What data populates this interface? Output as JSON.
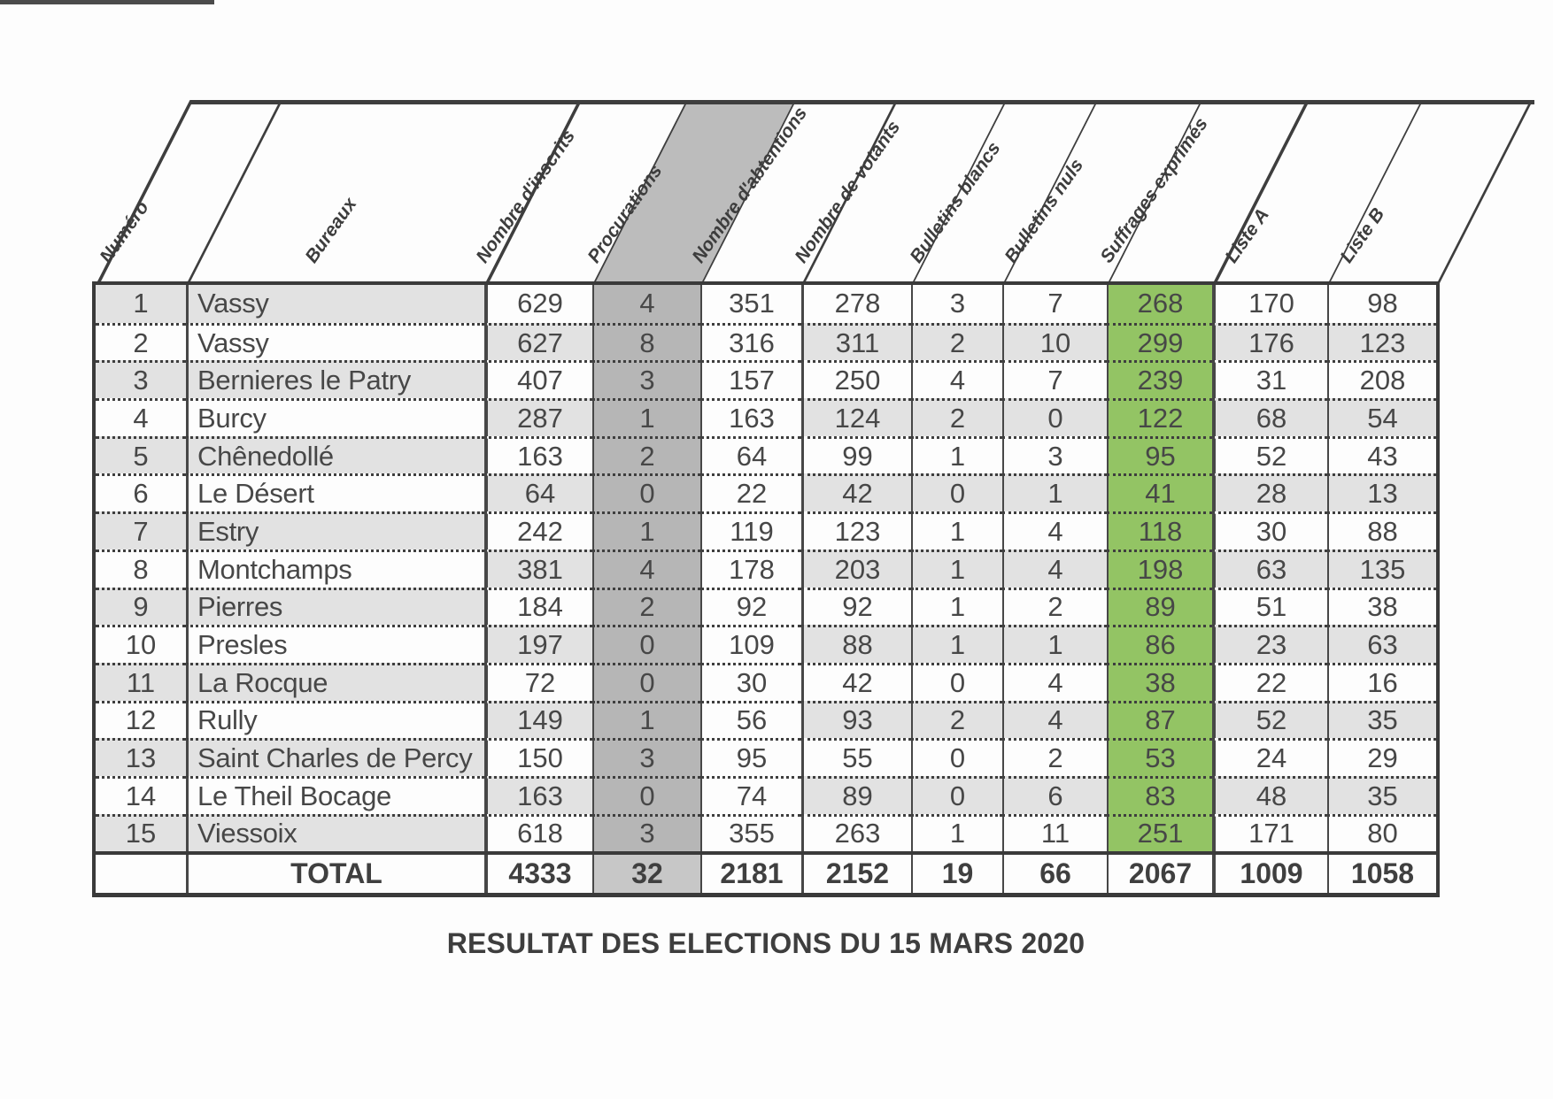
{
  "title": "RESULTAT DES ELECTIONS DU 15 MARS 2020",
  "table": {
    "columns": [
      {
        "key": "numero",
        "label": "Numéro"
      },
      {
        "key": "bureaux",
        "label": "Bureaux"
      },
      {
        "key": "inscrits",
        "label": "Nombre d'inscrits"
      },
      {
        "key": "procurations",
        "label": "Procurations"
      },
      {
        "key": "abstentions",
        "label": "Nombre d'abtentions"
      },
      {
        "key": "votants",
        "label": "Nombre de votants"
      },
      {
        "key": "blancs",
        "label": "Bulletins blancs"
      },
      {
        "key": "nuls",
        "label": "Bulletins nuls"
      },
      {
        "key": "suffrages",
        "label": "Suffrages exprimés"
      },
      {
        "key": "listeA",
        "label": "Liste A"
      },
      {
        "key": "listeB",
        "label": "Liste B"
      }
    ],
    "rows": [
      [
        "1",
        "Vassy",
        "629",
        "4",
        "351",
        "278",
        "3",
        "7",
        "268",
        "170",
        "98"
      ],
      [
        "2",
        "Vassy",
        "627",
        "8",
        "316",
        "311",
        "2",
        "10",
        "299",
        "176",
        "123"
      ],
      [
        "3",
        "Bernieres le Patry",
        "407",
        "3",
        "157",
        "250",
        "4",
        "7",
        "239",
        "31",
        "208"
      ],
      [
        "4",
        "Burcy",
        "287",
        "1",
        "163",
        "124",
        "2",
        "0",
        "122",
        "68",
        "54"
      ],
      [
        "5",
        "Chênedollé",
        "163",
        "2",
        "64",
        "99",
        "1",
        "3",
        "95",
        "52",
        "43"
      ],
      [
        "6",
        "Le Désert",
        "64",
        "0",
        "22",
        "42",
        "0",
        "1",
        "41",
        "28",
        "13"
      ],
      [
        "7",
        "Estry",
        "242",
        "1",
        "119",
        "123",
        "1",
        "4",
        "118",
        "30",
        "88"
      ],
      [
        "8",
        "Montchamps",
        "381",
        "4",
        "178",
        "203",
        "1",
        "4",
        "198",
        "63",
        "135"
      ],
      [
        "9",
        "Pierres",
        "184",
        "2",
        "92",
        "92",
        "1",
        "2",
        "89",
        "51",
        "38"
      ],
      [
        "10",
        "Presles",
        "197",
        "0",
        "109",
        "88",
        "1",
        "1",
        "86",
        "23",
        "63"
      ],
      [
        "11",
        "La Rocque",
        "72",
        "0",
        "30",
        "42",
        "0",
        "4",
        "38",
        "22",
        "16"
      ],
      [
        "12",
        "Rully",
        "149",
        "1",
        "56",
        "93",
        "2",
        "4",
        "87",
        "52",
        "35"
      ],
      [
        "13",
        "Saint Charles de Percy",
        "150",
        "3",
        "95",
        "55",
        "0",
        "2",
        "53",
        "24",
        "29"
      ],
      [
        "14",
        "Le Theil Bocage",
        "163",
        "0",
        "74",
        "89",
        "0",
        "6",
        "83",
        "48",
        "35"
      ],
      [
        "15",
        "Viessoix",
        "618",
        "3",
        "355",
        "263",
        "1",
        "11",
        "251",
        "171",
        "80"
      ]
    ],
    "total": [
      "",
      "TOTAL",
      "4333",
      "32",
      "2181",
      "2152",
      "19",
      "66",
      "2067",
      "1009",
      "1058"
    ]
  },
  "colors": {
    "white": "#fdfdfd",
    "band_gray": "#e2e2e2",
    "procurations_bg": "#b6b6b6",
    "procurations_total_bg": "#c7c7c7",
    "suffrages_green": "#93c464",
    "header_shade": "#bcbcbc",
    "border_dark": "#3e3e3e"
  }
}
